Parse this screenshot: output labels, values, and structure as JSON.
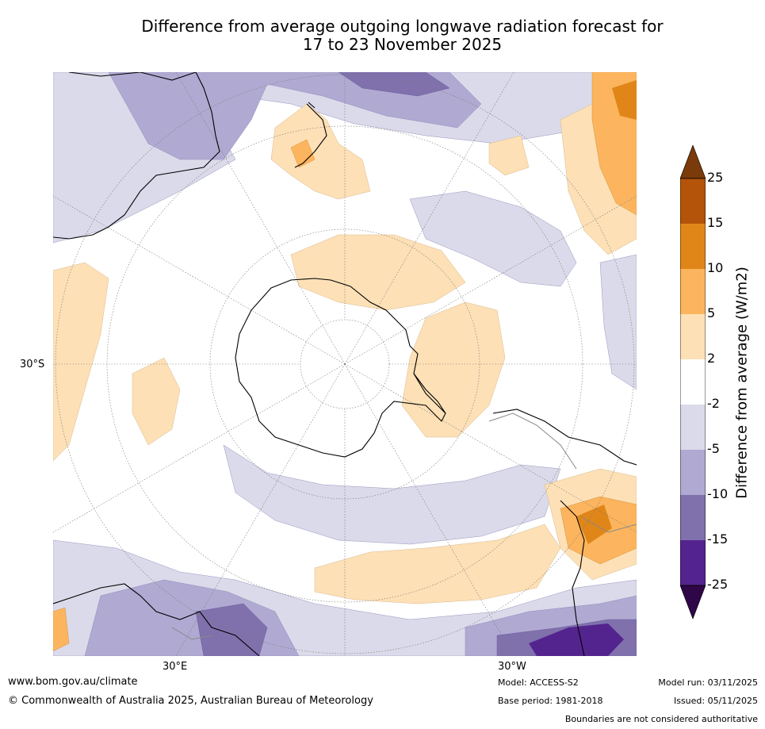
{
  "title_line1": "Difference from average outgoing longwave radiation forecast for",
  "title_line2": "17 to 23 November 2025",
  "map": {
    "labels": {
      "left_lat": "30°S",
      "bottom_left_lon": "30°E",
      "bottom_right_lon": "30°W"
    }
  },
  "colorbar": {
    "title": "Difference from average (W/m2)",
    "ticks": [
      "25",
      "15",
      "10",
      "5",
      "2",
      "-2",
      "-5",
      "-10",
      "-15",
      "-25"
    ],
    "colors": {
      "ext_high": "#7a3a0a",
      "b15_25": "#b4540a",
      "b10_15": "#e08618",
      "b5_10": "#fcb55e",
      "b2_5": "#fde0b6",
      "b_neutral": "#ffffff",
      "bm2_m5": "#dadaea",
      "bm5_m10": "#b0aad2",
      "bm10_m15": "#8071ad",
      "bm15_m25": "#54248e",
      "ext_low": "#2f0648"
    }
  },
  "footer": {
    "website": "www.bom.gov.au/climate",
    "copyright": "© Commonwealth of Australia 2025, Australian Bureau of Meteorology",
    "model": "Model: ACCESS-S2",
    "base_period": "Base period: 1981-2018",
    "model_run": "Model run: 03/11/2025",
    "issued": "Issued: 05/11/2025",
    "disclaimer": "Boundaries are not considered authoritative"
  }
}
